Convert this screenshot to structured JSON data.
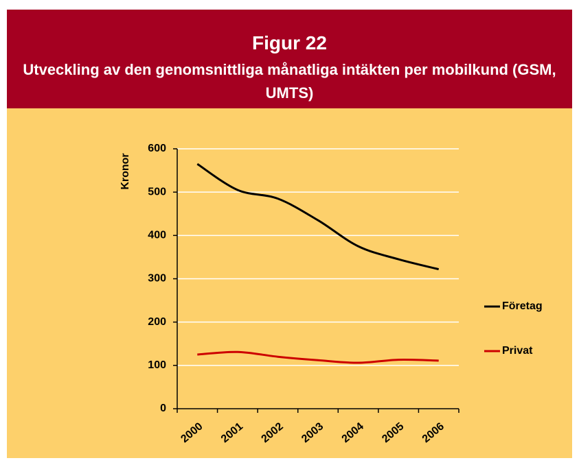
{
  "chart_data": {
    "type": "line",
    "title": "Figur 22",
    "subtitle": "Utveckling av den genomsnittliga månatliga intäkten per mobilkund (GSM, UMTS)",
    "y_label": "Kronor",
    "categories": [
      "2000",
      "2001",
      "2002",
      "2003",
      "2004",
      "2005",
      "2006"
    ],
    "series": [
      {
        "name": "Företag",
        "color": "#000000",
        "values": [
          565,
          505,
          485,
          435,
          375,
          345,
          322
        ]
      },
      {
        "name": "Privat",
        "color": "#cc0000",
        "values": [
          125,
          131,
          120,
          112,
          106,
          113,
          111
        ]
      }
    ],
    "ylim": [
      0,
      600
    ],
    "yticks": [
      0,
      100,
      200,
      300,
      400,
      500,
      600
    ],
    "grid": true,
    "legend": "right"
  }
}
